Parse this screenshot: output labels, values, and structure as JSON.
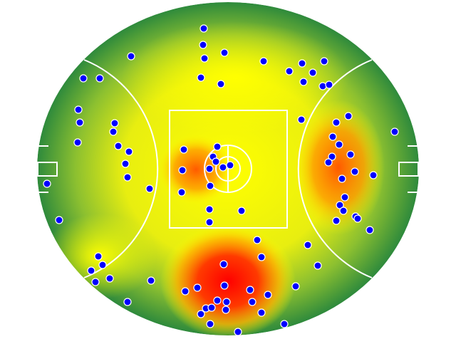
{
  "chart_data": {
    "type": "scatter",
    "color": "#0000ff",
    "x": [
      286,
      285,
      315,
      287,
      184,
      370,
      424,
      455,
      406,
      439,
      117,
      140,
      282,
      310,
      426,
      453,
      462,
      110,
      112,
      161,
      159,
      109,
      166,
      181,
      176,
      179,
      210,
      66,
      83,
      423,
      489,
      472,
      554,
      467,
      476,
      258,
      305,
      299,
      303,
      294,
      313,
      323,
      256,
      295,
      255,
      492,
      466,
      461,
      498,
      524,
      480,
      484,
      477,
      482,
      499,
      502,
      472,
      519,
      294,
      339,
      294,
      361,
      432,
      367,
      446,
      138,
      144,
      128,
      154,
      134,
      212,
      314,
      260,
      277,
      315,
      351,
      376,
      415,
      179,
      305,
      318,
      354,
      289,
      297,
      317,
      282,
      367,
      399,
      295,
      334
    ],
    "y": [
      40,
      63,
      74,
      82,
      79,
      86,
      89,
      86,
      100,
      102,
      110,
      110,
      109,
      118,
      115,
      121,
      119,
      154,
      172,
      173,
      185,
      200,
      205,
      213,
      230,
      249,
      265,
      258,
      309,
      168,
      163,
      172,
      185,
      192,
      203,
      210,
      206,
      220,
      227,
      237,
      235,
      232,
      239,
      261,
      270,
      217,
      220,
      228,
      241,
      246,
      251,
      277,
      288,
      296,
      304,
      307,
      310,
      323,
      294,
      296,
      312,
      337,
      344,
      361,
      373,
      360,
      372,
      380,
      391,
      396,
      394,
      371,
      409,
      404,
      401,
      407,
      414,
      402,
      424,
      422,
      424,
      424,
      433,
      432,
      435,
      441,
      439,
      455,
      455,
      466
    ]
  }
}
